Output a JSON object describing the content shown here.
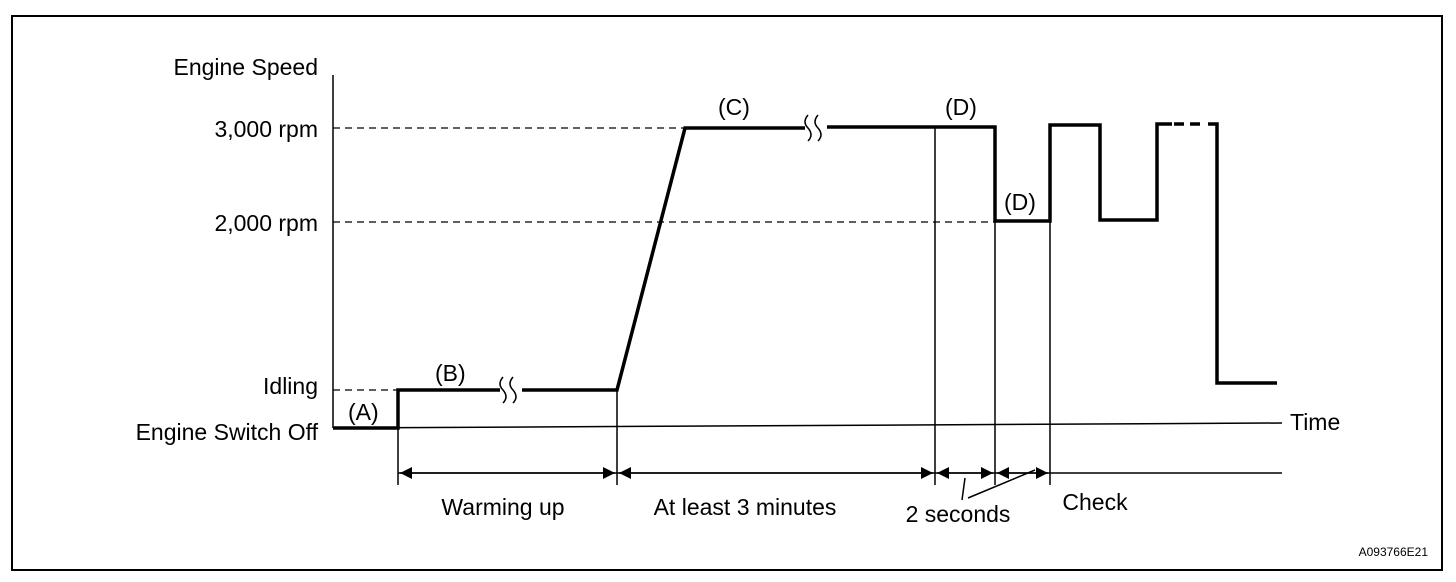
{
  "y_axis": {
    "title": "Engine Speed",
    "levels": [
      "3,000 rpm",
      "2,000 rpm",
      "Idling",
      "Engine Switch Off"
    ]
  },
  "x_axis": {
    "title": "Time"
  },
  "stage_labels": [
    "(A)",
    "(B)",
    "(C)",
    "(D)",
    "(D)"
  ],
  "periods": [
    "Warming up",
    "At least 3 minutes",
    "2 seconds",
    "Check"
  ],
  "figure_id": "A093766E21"
}
